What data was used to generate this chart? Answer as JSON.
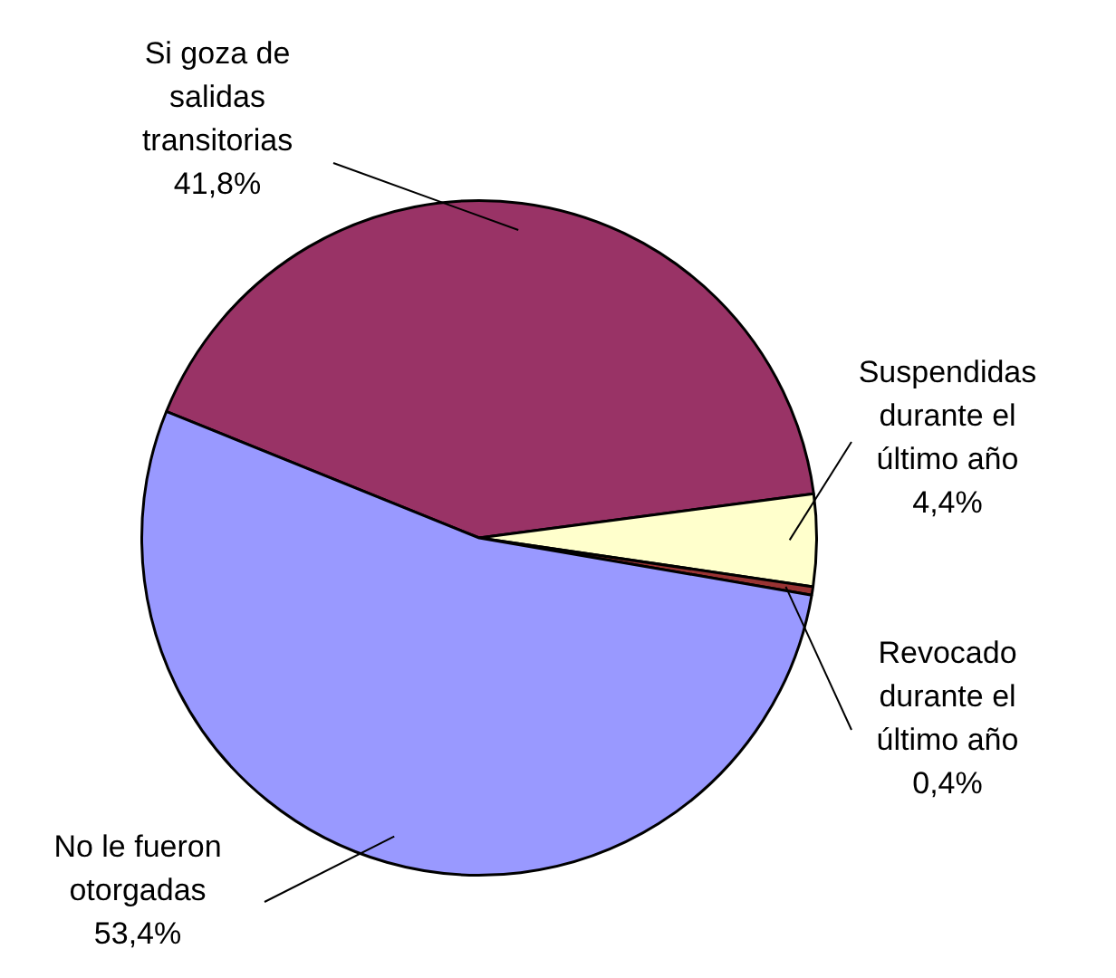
{
  "chart_data": {
    "type": "pie",
    "categories": [
      "Si goza de salidas transitorias",
      "Suspendidas durante el último año",
      "Revocado durante el último año",
      "No le fueron otorgadas"
    ],
    "values": [
      41.8,
      4.4,
      0.4,
      53.4
    ],
    "colors": [
      "#993366",
      "#ffffcc",
      "#993333",
      "#9999ff"
    ],
    "value_labels": [
      "41,8%",
      "4,4%",
      "0,4%",
      "53,4%"
    ]
  }
}
